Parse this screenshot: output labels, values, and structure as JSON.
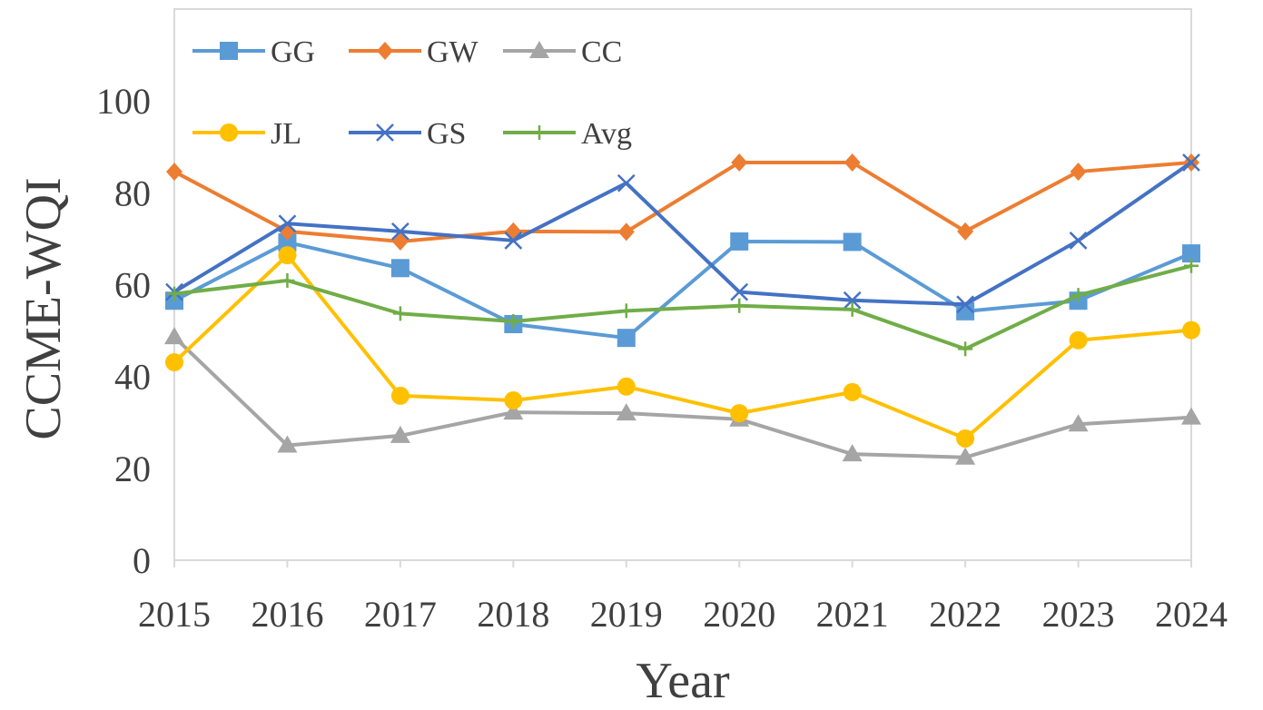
{
  "chart_data": {
    "type": "line",
    "title": "",
    "xlabel": "Year",
    "ylabel": "CCME-WQI",
    "ylim": [
      0,
      120
    ],
    "yticks": [
      0,
      20,
      40,
      60,
      80,
      100
    ],
    "grid": false,
    "legend_position": "top-left",
    "categories": [
      "2015",
      "2016",
      "2017",
      "2018",
      "2019",
      "2020",
      "2021",
      "2022",
      "2023",
      "2024"
    ],
    "series": [
      {
        "name": "GG",
        "color": "#5b9bd5",
        "marker": "square",
        "values": [
          56.5,
          69.2,
          63.6,
          51.4,
          48.4,
          69.4,
          69.3,
          54.2,
          56.5,
          66.8
        ]
      },
      {
        "name": "GW",
        "color": "#ed7d31",
        "marker": "diamond",
        "values": [
          84.6,
          71.6,
          69.4,
          71.6,
          71.5,
          86.6,
          86.6,
          71.6,
          84.6,
          86.6
        ]
      },
      {
        "name": "CC",
        "color": "#a5a5a5",
        "marker": "triangle",
        "values": [
          48.6,
          25.0,
          27.1,
          32.2,
          32.0,
          30.7,
          23.1,
          22.4,
          29.6,
          31.1
        ]
      },
      {
        "name": "JL",
        "color": "#ffc000",
        "marker": "circle",
        "values": [
          43.1,
          66.4,
          35.8,
          34.8,
          37.8,
          32.0,
          36.6,
          26.5,
          47.9,
          50.1
        ]
      },
      {
        "name": "GS",
        "color": "#4472c4",
        "marker": "x",
        "values": [
          58.4,
          73.3,
          71.6,
          69.6,
          82.1,
          58.4,
          56.6,
          55.7,
          69.6,
          86.6
        ]
      },
      {
        "name": "Avg",
        "color": "#70ad47",
        "marker": "plus",
        "values": [
          58.0,
          60.9,
          53.7,
          52.0,
          54.3,
          55.4,
          54.6,
          46.0,
          57.7,
          64.1
        ]
      }
    ]
  }
}
